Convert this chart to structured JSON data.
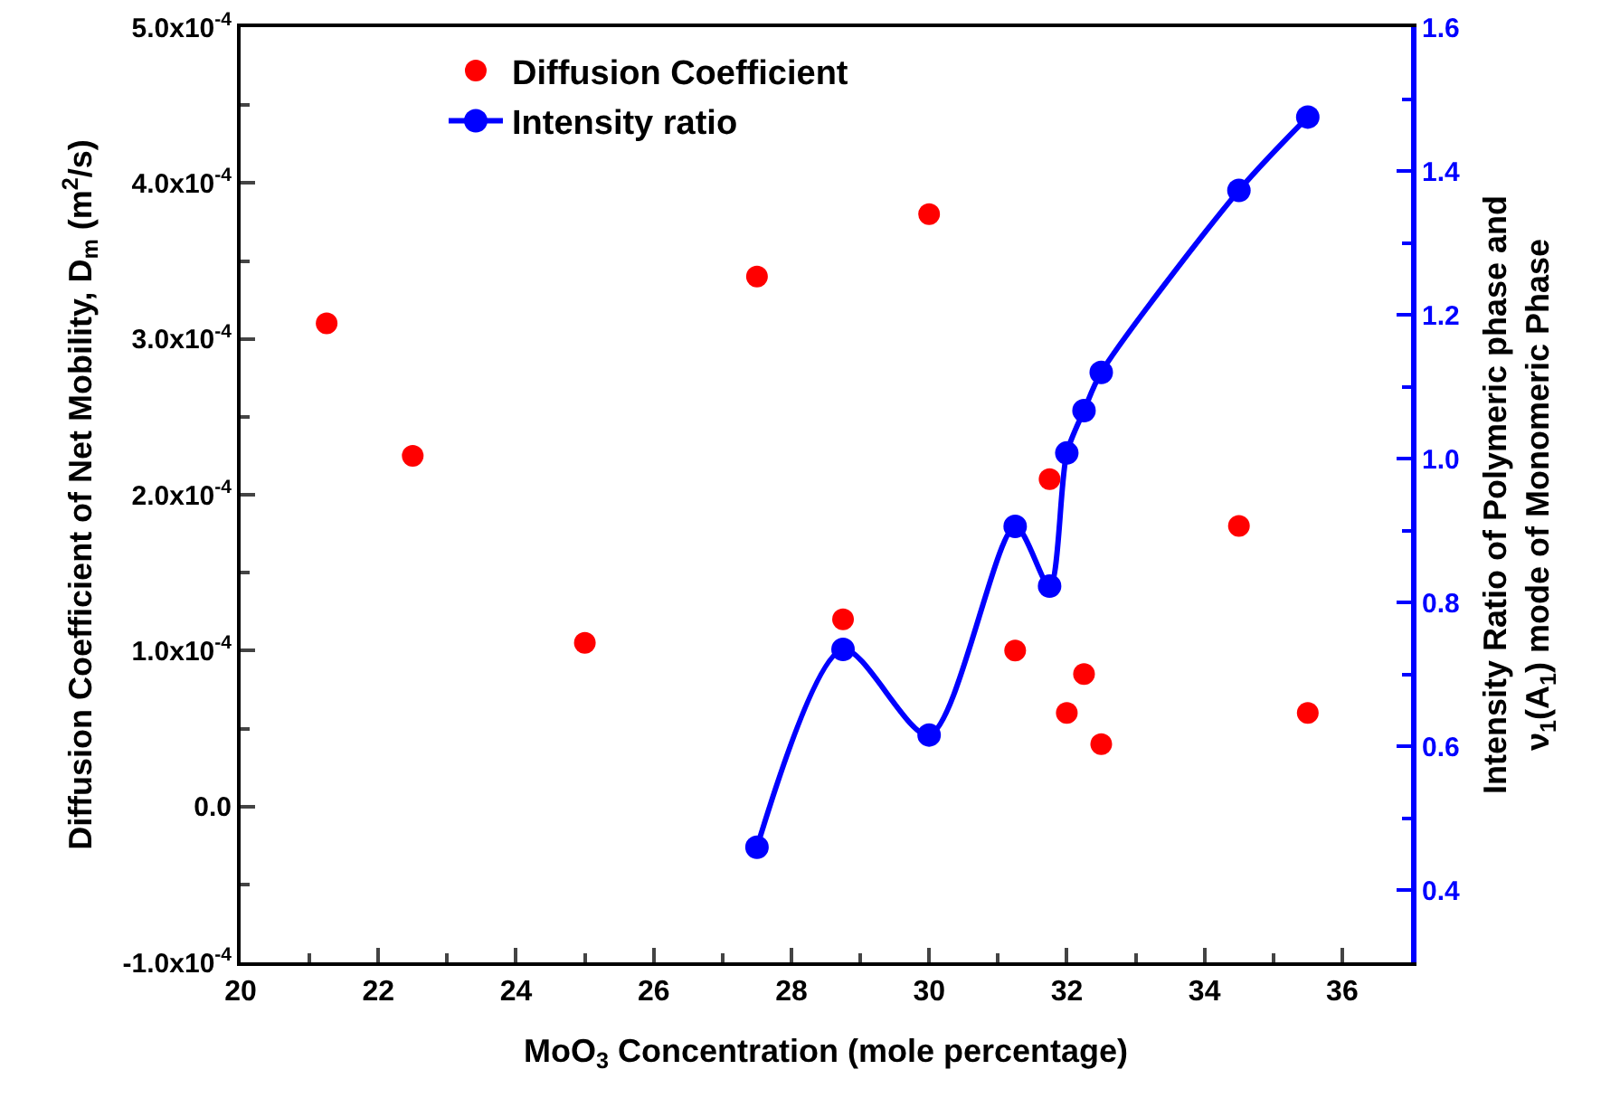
{
  "chart_data": {
    "type": "scatter",
    "xlabel": "MoO$_{3}$ Concentration (mole percentage)",
    "ylabel": "Diffusion Coefficient of Net Mobility, D$_{m}$ (m$^{2}$/s)",
    "y2label": "Intensity Ratio of Polymeric phase and\nν$_{1}$(A$_{1}$) mode of Monomeric Phase",
    "xlim": [
      20,
      37
    ],
    "xticks": [
      20,
      22,
      24,
      26,
      28,
      30,
      32,
      34,
      36
    ],
    "ylim": [
      -0.0001,
      0.0005
    ],
    "yticks": [
      {
        "value": -0.0001,
        "label": "-1.0x10$^{-4}$"
      },
      {
        "value": 0,
        "label": "0.0"
      },
      {
        "value": 0.0001,
        "label": "1.0x10$^{-4}$"
      },
      {
        "value": 0.0002,
        "label": "2.0x10$^{-4}$"
      },
      {
        "value": 0.0003,
        "label": "3.0x10$^{-4}$"
      },
      {
        "value": 0.0004,
        "label": "4.0x10$^{-4}$"
      },
      {
        "value": 0.0005,
        "label": "5.0x10$^{-4}$"
      }
    ],
    "y2lim": [
      0.3,
      1.6
    ],
    "y2ticks": [
      {
        "value": 0.4,
        "label": "0.4"
      },
      {
        "value": 0.6,
        "label": "0.6"
      },
      {
        "value": 0.8,
        "label": "0.8"
      },
      {
        "value": 1.0,
        "label": "1.0"
      },
      {
        "value": 1.2,
        "label": "1.2"
      },
      {
        "value": 1.4,
        "label": "1.4"
      },
      {
        "value": 1.6,
        "label": "1.6"
      }
    ],
    "grid": false,
    "legend": "top left",
    "marker": "circle",
    "series": [
      {
        "name": "Diffusion Coefficient",
        "color": "#ff0000",
        "x": [
          21.25,
          22.5,
          25,
          27.5,
          28.75,
          30,
          31.25,
          31.75,
          32,
          32.25,
          32.5,
          34.5,
          35.5
        ],
        "values": [
          0.00031,
          0.000225,
          0.000105,
          0.00034,
          0.00012,
          0.00038,
          0.0001,
          0.00021,
          6e-05,
          8.5e-05,
          4e-05,
          0.00018,
          6e-05
        ]
      },
      {
        "name": "Intensity ratio",
        "type": "line",
        "axis": "y2",
        "color": "#0000ff",
        "line_style": "solid",
        "x": [
          27.5,
          28.75,
          30,
          31.25,
          31.75,
          32,
          32.25,
          32.5,
          34.5,
          35.5
        ],
        "values": [
          0.46,
          0.735,
          0.616,
          0.906,
          0.823,
          1.008,
          1.067,
          1.12,
          1.373,
          1.475
        ]
      }
    ]
  }
}
